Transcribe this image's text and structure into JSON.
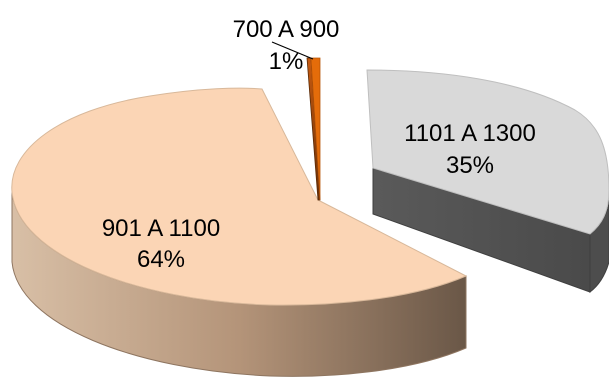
{
  "chart_data": {
    "type": "pie",
    "style": "3d-exploded",
    "slices": [
      {
        "category": "700 A 900",
        "percent_label": "1%",
        "value": 1,
        "color": "#E46C0A"
      },
      {
        "category": "901 A 1100",
        "percent_label": "64%",
        "value": 64,
        "color": "#FBD5B5"
      },
      {
        "category": "1101 A 1300",
        "percent_label": "35%",
        "value": 35,
        "color": "#D9D9D9"
      }
    ],
    "title": "",
    "legend": "none"
  }
}
